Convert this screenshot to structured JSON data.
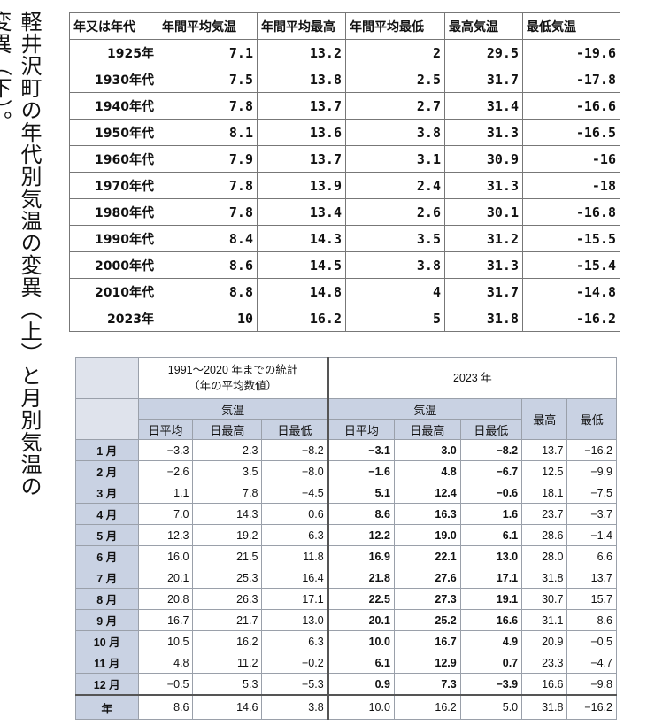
{
  "caption": "軽井沢町の年代別気温の変異（上）と月別気温の変異（下）。",
  "table_top": {
    "headers": [
      "年又は年代",
      "年間平均気温",
      "年間平均最高",
      "年間平均最低",
      "最高気温",
      "最低気温"
    ],
    "rows": [
      [
        "1925年",
        "7.1",
        "13.2",
        "2",
        "29.5",
        "-19.6"
      ],
      [
        "1930年代",
        "7.5",
        "13.8",
        "2.5",
        "31.7",
        "-17.8"
      ],
      [
        "1940年代",
        "7.8",
        "13.7",
        "2.7",
        "31.4",
        "-16.6"
      ],
      [
        "1950年代",
        "8.1",
        "13.6",
        "3.8",
        "31.3",
        "-16.5"
      ],
      [
        "1960年代",
        "7.9",
        "13.7",
        "3.1",
        "30.9",
        "-16"
      ],
      [
        "1970年代",
        "7.8",
        "13.9",
        "2.4",
        "31.3",
        "-18"
      ],
      [
        "1980年代",
        "7.8",
        "13.4",
        "2.6",
        "30.1",
        "-16.8"
      ],
      [
        "1990年代",
        "8.4",
        "14.3",
        "3.5",
        "31.2",
        "-15.5"
      ],
      [
        "2000年代",
        "8.6",
        "14.5",
        "3.8",
        "31.3",
        "-15.4"
      ],
      [
        "2010年代",
        "8.8",
        "14.8",
        "4",
        "31.7",
        "-14.8"
      ],
      [
        "2023年",
        "10",
        "16.2",
        "5",
        "31.8",
        "-16.2"
      ]
    ]
  },
  "table_bottom": {
    "period_label_line1": "1991～2020 年までの統計",
    "period_label_line2": "（年の平均数値）",
    "year_label": "2023 年",
    "temp_label_left": "気温",
    "temp_label_right": "気温",
    "max_label": "最高",
    "min_label": "最低",
    "sub_headers_left": [
      "日平均",
      "日最高",
      "日最低"
    ],
    "sub_headers_right": [
      "日平均",
      "日最高",
      "日最低"
    ],
    "rows": [
      [
        "1 月",
        "−3.3",
        "2.3",
        "−8.2",
        "−3.1",
        "3.0",
        "−8.2",
        "13.7",
        "−16.2"
      ],
      [
        "2 月",
        "−2.6",
        "3.5",
        "−8.0",
        "−1.6",
        "4.8",
        "−6.7",
        "12.5",
        "−9.9"
      ],
      [
        "3 月",
        "1.1",
        "7.8",
        "−4.5",
        "5.1",
        "12.4",
        "−0.6",
        "18.1",
        "−7.5"
      ],
      [
        "4 月",
        "7.0",
        "14.3",
        "0.6",
        "8.6",
        "16.3",
        "1.6",
        "23.7",
        "−3.7"
      ],
      [
        "5 月",
        "12.3",
        "19.2",
        "6.3",
        "12.2",
        "19.0",
        "6.1",
        "28.6",
        "−1.4"
      ],
      [
        "6 月",
        "16.0",
        "21.5",
        "11.8",
        "16.9",
        "22.1",
        "13.0",
        "28.0",
        "6.6"
      ],
      [
        "7 月",
        "20.1",
        "25.3",
        "16.4",
        "21.8",
        "27.6",
        "17.1",
        "31.8",
        "13.7"
      ],
      [
        "8 月",
        "20.8",
        "26.3",
        "17.1",
        "22.5",
        "27.3",
        "19.1",
        "30.7",
        "15.7"
      ],
      [
        "9 月",
        "16.7",
        "21.7",
        "13.0",
        "20.1",
        "25.2",
        "16.6",
        "31.1",
        "8.6"
      ],
      [
        "10 月",
        "10.5",
        "16.2",
        "6.3",
        "10.0",
        "16.7",
        "4.9",
        "20.9",
        "−0.5"
      ],
      [
        "11 月",
        "4.8",
        "11.2",
        "−0.2",
        "6.1",
        "12.9",
        "0.7",
        "23.3",
        "−4.7"
      ],
      [
        "12 月",
        "−0.5",
        "5.3",
        "−5.3",
        "0.9",
        "7.3",
        "−3.9",
        "16.6",
        "−9.8"
      ]
    ],
    "total_row": [
      "年",
      "8.6",
      "14.6",
      "3.8",
      "10.0",
      "16.2",
      "5.0",
      "31.8",
      "−16.2"
    ]
  }
}
